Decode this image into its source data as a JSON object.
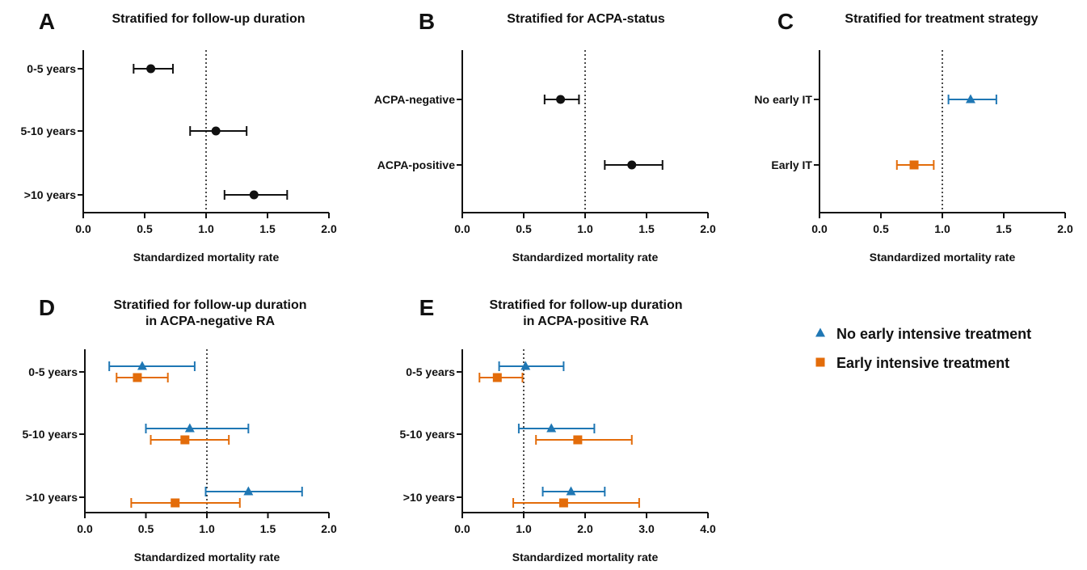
{
  "colors": {
    "black": "#111111",
    "blue": "#1f77b4",
    "orange": "#e36c0a"
  },
  "legend": {
    "items": [
      {
        "label": "No early intensive treatment",
        "marker": "triangle",
        "color": "#1f77b4"
      },
      {
        "label": "Early intensive treatment",
        "marker": "square",
        "color": "#e36c0a"
      }
    ]
  },
  "chart_data": [
    {
      "letter": "A",
      "type": "scatter",
      "title": [
        "Stratified for follow-up duration"
      ],
      "xlabel": "Standardized mortality rate",
      "categories": [
        "0-5 years",
        "5-10 years",
        ">10 years"
      ],
      "xlim": [
        0,
        2.0
      ],
      "xticks": [
        "0.0",
        "0.5",
        "1.0",
        "1.5",
        "2.0"
      ],
      "reference_line": 1.0,
      "series": [
        {
          "marker": "circle",
          "color": "#111111",
          "offset": 0,
          "values": [
            0.55,
            1.08,
            1.39
          ],
          "lower": [
            0.41,
            0.87,
            1.15
          ],
          "upper": [
            0.73,
            1.33,
            1.66
          ]
        }
      ]
    },
    {
      "letter": "B",
      "type": "scatter",
      "title": [
        "Stratified for ACPA-status"
      ],
      "xlabel": "Standardized mortality rate",
      "categories": [
        "ACPA-negative",
        "ACPA-positive"
      ],
      "xlim": [
        0,
        2.0
      ],
      "xticks": [
        "0.0",
        "0.5",
        "1.0",
        "1.5",
        "2.0"
      ],
      "reference_line": 1.0,
      "series": [
        {
          "marker": "circle",
          "color": "#111111",
          "offset": 0,
          "values": [
            0.8,
            1.38
          ],
          "lower": [
            0.67,
            1.16
          ],
          "upper": [
            0.95,
            1.63
          ]
        }
      ]
    },
    {
      "letter": "C",
      "type": "scatter",
      "title": [
        "Stratified for treatment strategy"
      ],
      "xlabel": "Standardized mortality rate",
      "categories": [
        "No early IT",
        "Early IT"
      ],
      "xlim": [
        0,
        2.0
      ],
      "xticks": [
        "0.0",
        "0.5",
        "1.0",
        "1.5",
        "2.0"
      ],
      "reference_line": 1.0,
      "series": [
        {
          "marker": "triangle",
          "color": "#1f77b4",
          "offset": 0,
          "only": [
            0
          ],
          "values": [
            1.23,
            null
          ],
          "lower": [
            1.05,
            null
          ],
          "upper": [
            1.44,
            null
          ]
        },
        {
          "marker": "square",
          "color": "#e36c0a",
          "offset": 0,
          "only": [
            1
          ],
          "values": [
            null,
            0.77
          ],
          "lower": [
            null,
            0.63
          ],
          "upper": [
            null,
            0.93
          ]
        }
      ]
    },
    {
      "letter": "D",
      "type": "scatter",
      "title": [
        "Stratified for follow-up duration",
        "in ACPA-negative RA"
      ],
      "xlabel": "Standardized mortality rate",
      "categories": [
        "0-5 years",
        "5-10 years",
        ">10 years"
      ],
      "xlim": [
        0,
        2.0
      ],
      "xticks": [
        "0.0",
        "0.5",
        "1.0",
        "1.5",
        "2.0"
      ],
      "reference_line": 1.0,
      "series": [
        {
          "marker": "triangle",
          "color": "#1f77b4",
          "offset": -1,
          "values": [
            0.47,
            0.86,
            1.34
          ],
          "lower": [
            0.2,
            0.5,
            0.99
          ],
          "upper": [
            0.9,
            1.34,
            1.78
          ]
        },
        {
          "marker": "square",
          "color": "#e36c0a",
          "offset": 1,
          "values": [
            0.43,
            0.82,
            0.74
          ],
          "lower": [
            0.26,
            0.54,
            0.38
          ],
          "upper": [
            0.68,
            1.18,
            1.27
          ]
        }
      ]
    },
    {
      "letter": "E",
      "type": "scatter",
      "title": [
        "Stratified for follow-up duration",
        "in ACPA-positive RA"
      ],
      "xlabel": "Standardized mortality rate",
      "categories": [
        "0-5 years",
        "5-10 years",
        ">10 years"
      ],
      "xlim": [
        0,
        4.0
      ],
      "xticks": [
        "0.0",
        "1.0",
        "2.0",
        "3.0",
        "4.0"
      ],
      "reference_line": 1.0,
      "series": [
        {
          "marker": "triangle",
          "color": "#1f77b4",
          "offset": -1,
          "values": [
            1.03,
            1.45,
            1.77
          ],
          "lower": [
            0.6,
            0.92,
            1.31
          ],
          "upper": [
            1.65,
            2.15,
            2.32
          ]
        },
        {
          "marker": "square",
          "color": "#e36c0a",
          "offset": 1,
          "values": [
            0.57,
            1.88,
            1.65
          ],
          "lower": [
            0.28,
            1.2,
            0.83
          ],
          "upper": [
            0.98,
            2.76,
            2.88
          ]
        }
      ]
    }
  ]
}
